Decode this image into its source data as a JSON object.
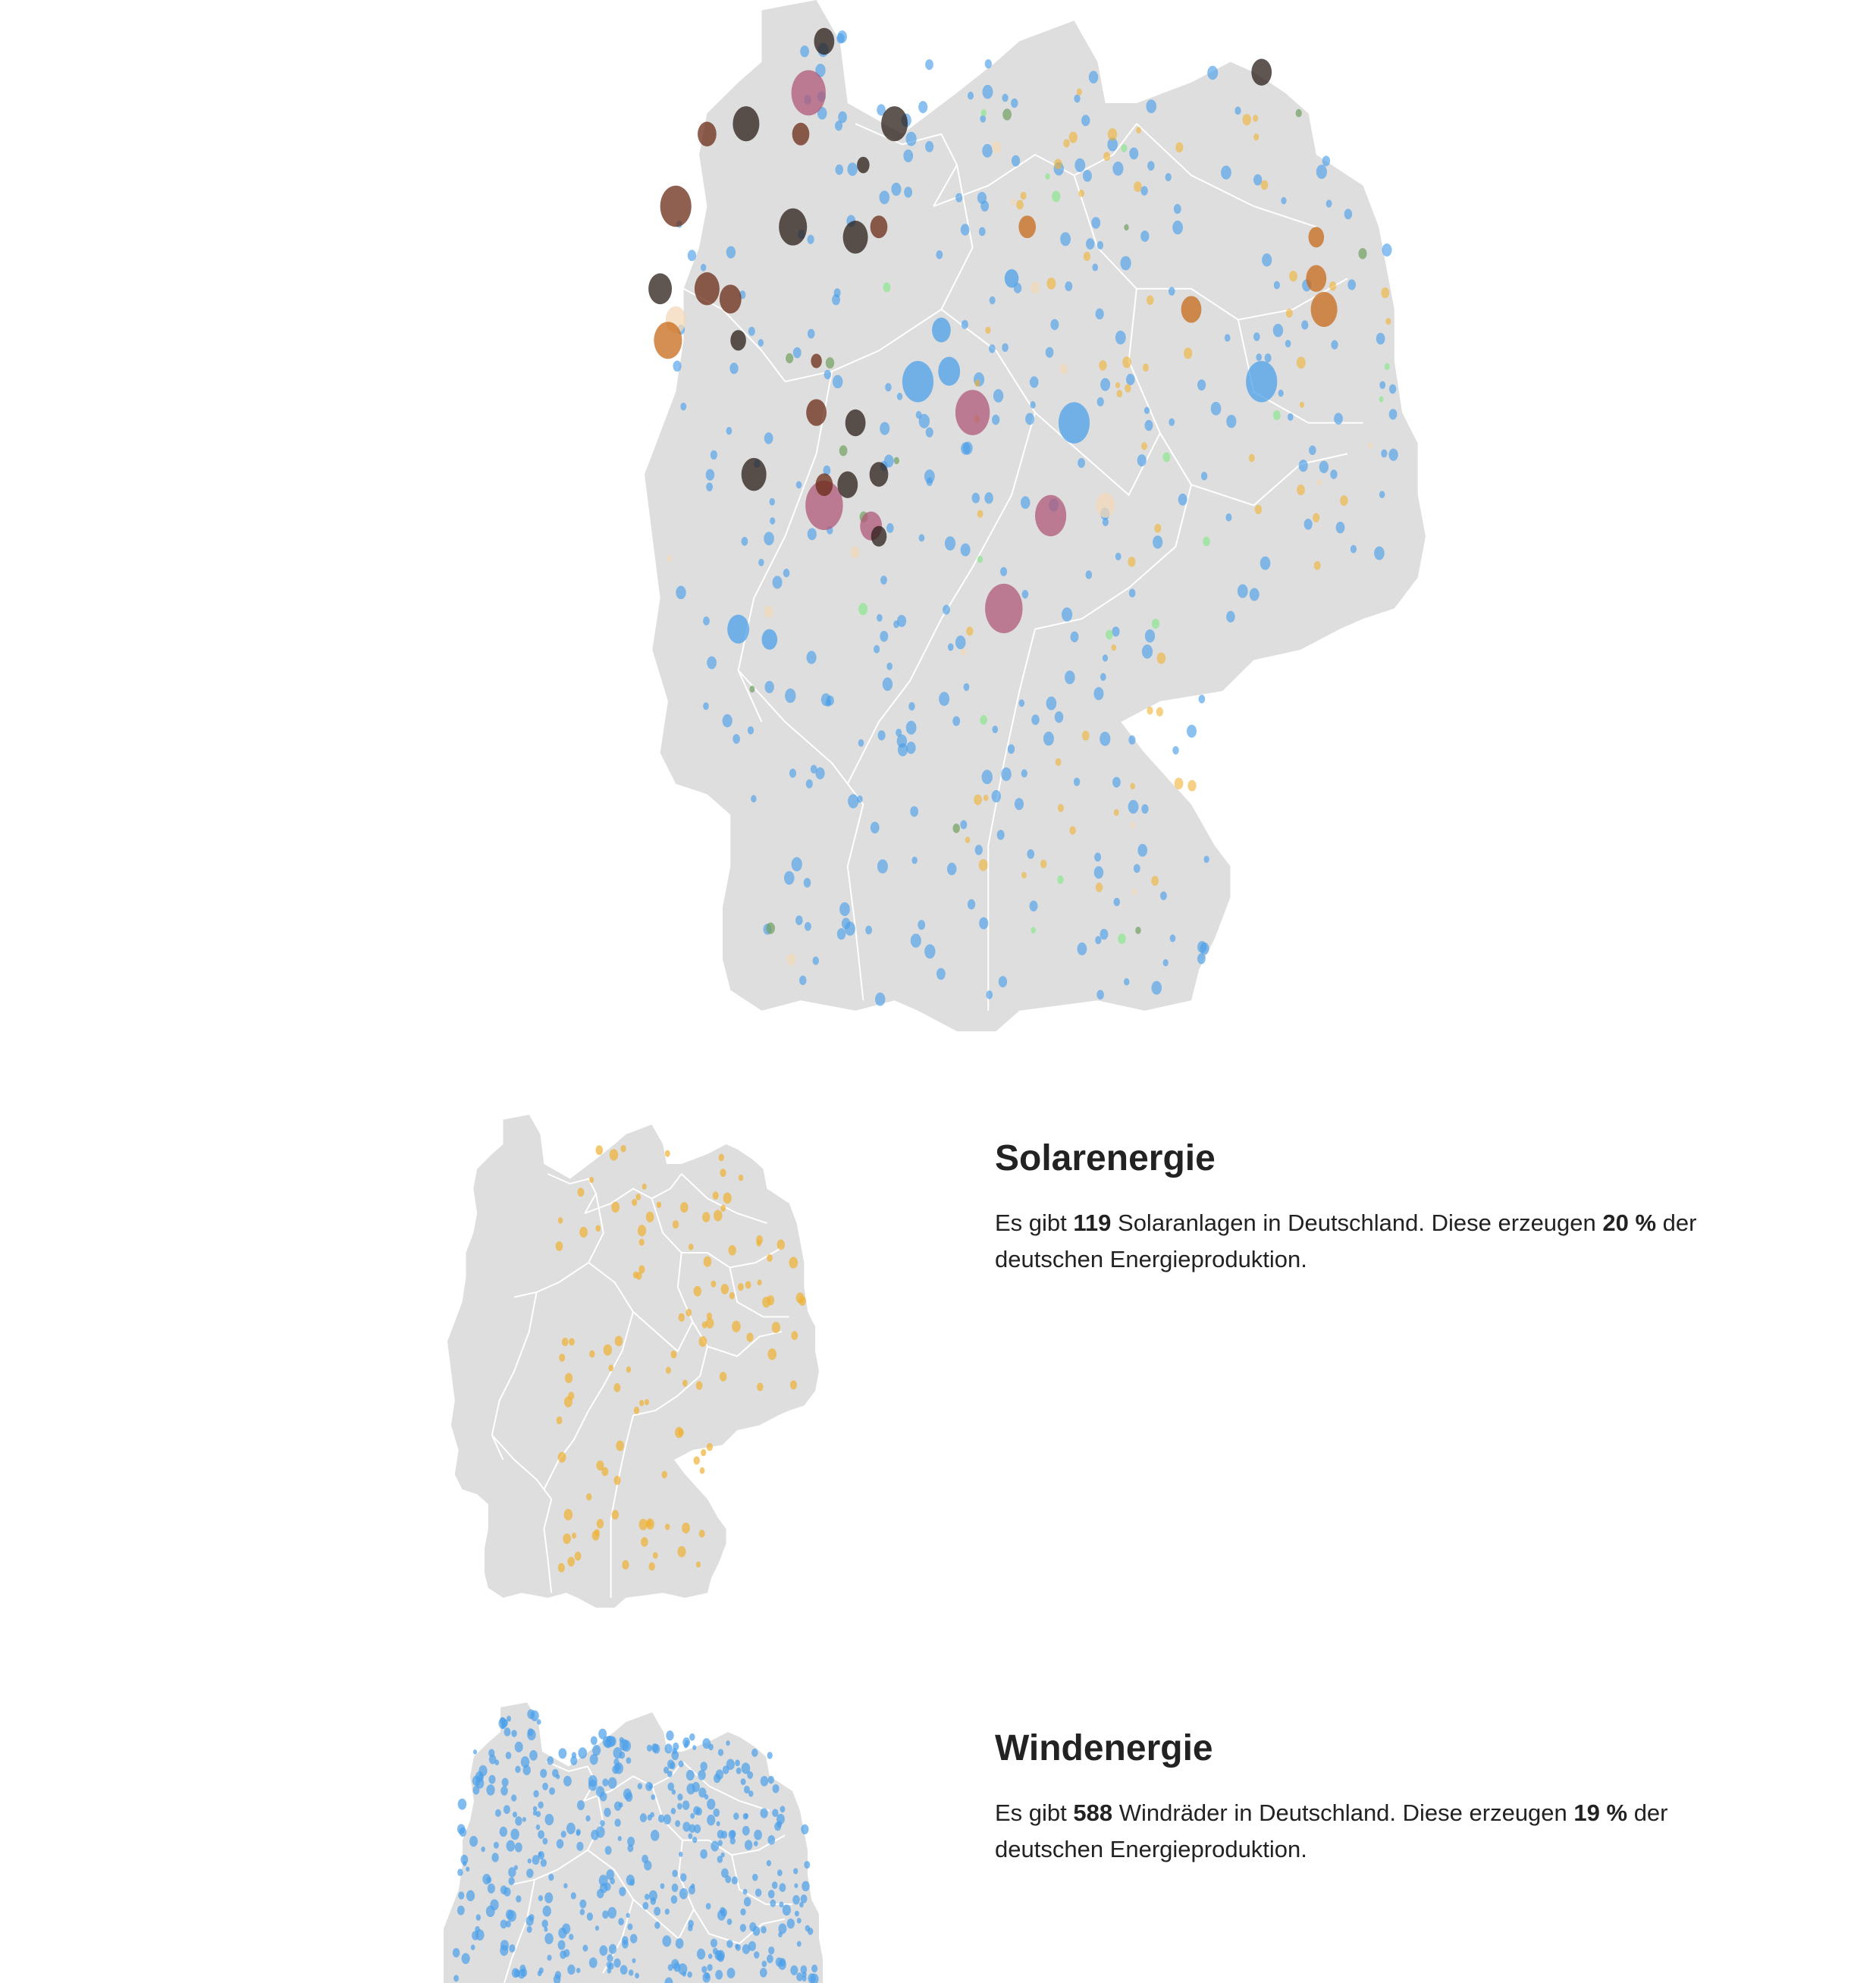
{
  "colors": {
    "land": "#dedede",
    "border": "#ffffff",
    "solar": "#f0b030",
    "wind": "#4ca0ea",
    "brown_coal": "#6a2a14",
    "hard_coal": "#2a1e18",
    "gas": "#c86a18",
    "nuclear": "#b05878",
    "biomass": "#6fa060",
    "hydro": "#8ce890",
    "other": "#f3d8b8"
  },
  "sections": {
    "solar": {
      "title": "Solarenergie",
      "pre": "Es gibt ",
      "count": "119",
      "mid": " Solaranlagen in Deutschland. Diese erzeugen ",
      "share": "20 %",
      "post": " der deutschen Energieproduktion."
    },
    "wind": {
      "title": "Windenergie",
      "pre": "Es gibt ",
      "count": "588",
      "mid": " Windräder in Deutschland. Diese erzeugen ",
      "share": "19 %",
      "post": " der deutschen Energieproduktion."
    }
  }
}
